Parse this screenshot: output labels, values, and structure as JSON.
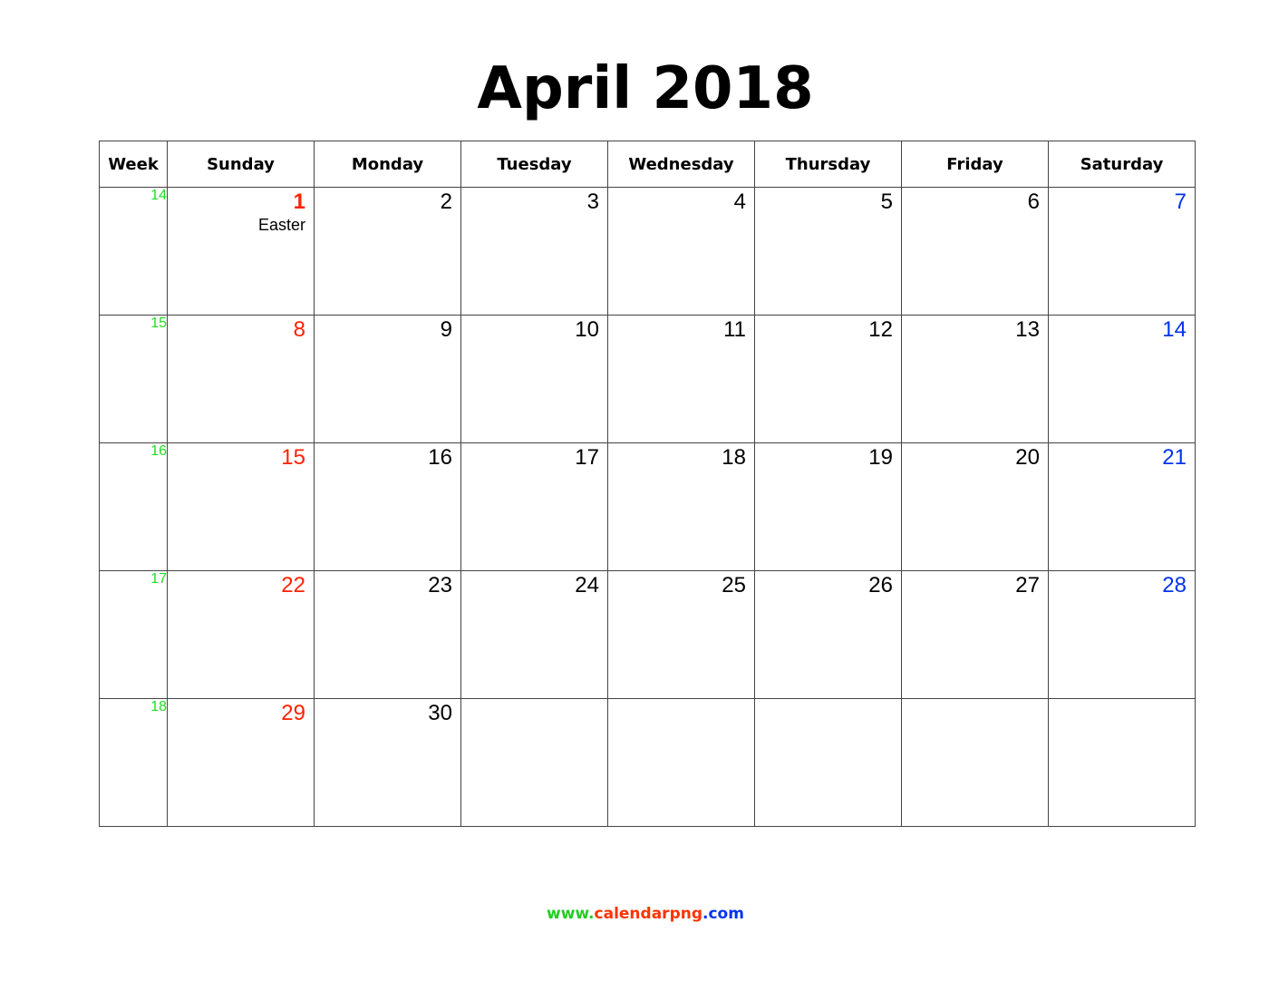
{
  "title": "April 2018",
  "header": {
    "week": "Week",
    "days": [
      "Sunday",
      "Monday",
      "Tuesday",
      "Wednesday",
      "Thursday",
      "Friday",
      "Saturday"
    ]
  },
  "weeks": [
    {
      "num": "14",
      "days": [
        "1",
        "2",
        "3",
        "4",
        "5",
        "6",
        "7"
      ]
    },
    {
      "num": "15",
      "days": [
        "8",
        "9",
        "10",
        "11",
        "12",
        "13",
        "14"
      ]
    },
    {
      "num": "16",
      "days": [
        "15",
        "16",
        "17",
        "18",
        "19",
        "20",
        "21"
      ]
    },
    {
      "num": "17",
      "days": [
        "22",
        "23",
        "24",
        "25",
        "26",
        "27",
        "28"
      ]
    },
    {
      "num": "18",
      "days": [
        "29",
        "30",
        "",
        "",
        "",
        "",
        ""
      ]
    }
  ],
  "holidays": {
    "easter": "Easter"
  },
  "footer": {
    "www": "www.",
    "name": "calendarpng",
    "com": ".com"
  },
  "colors": {
    "week": "#22dd22",
    "sunday": "#ff2200",
    "saturday": "#0033ee",
    "text": "#000000",
    "grid": "#444444"
  }
}
